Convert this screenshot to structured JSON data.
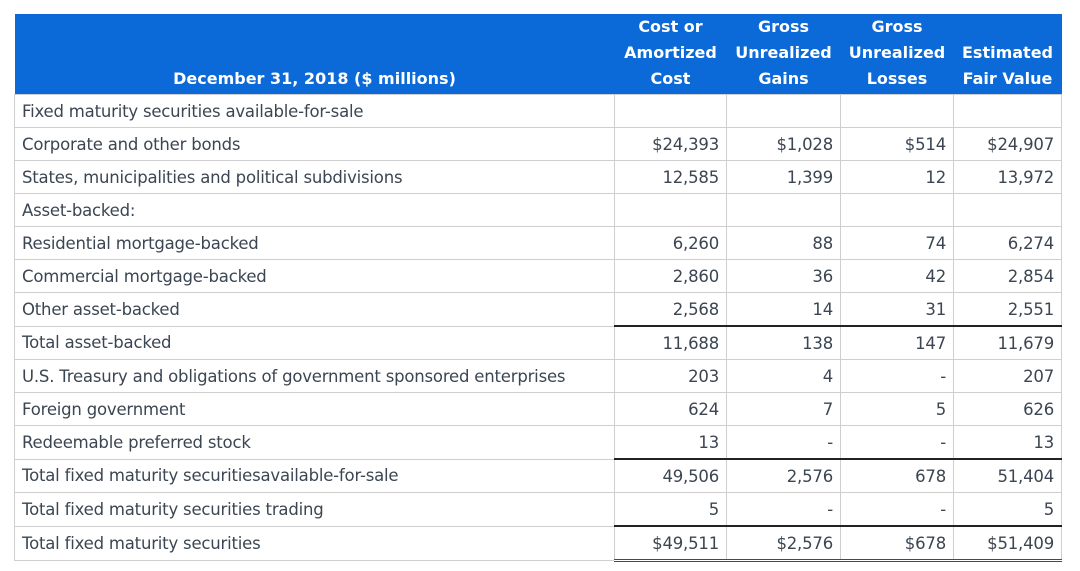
{
  "table": {
    "headers": [
      "December 31, 2018 ($ millions)",
      "Cost or Amortized Cost",
      "Gross Unrealized Gains",
      "Gross Unrealized Losses",
      "Estimated Fair Value"
    ],
    "rows": [
      {
        "label": "Fixed maturity securities available-for-sale",
        "values": [
          "",
          "",
          "",
          ""
        ],
        "type": "section"
      },
      {
        "label": "Corporate and other bonds",
        "values": [
          "$24,393",
          "$1,028",
          "$514",
          "$24,907"
        ]
      },
      {
        "label": "States, municipalities and political subdivisions",
        "values": [
          "12,585",
          "1,399",
          "12",
          "13,972"
        ]
      },
      {
        "label": "Asset-backed:",
        "values": [
          "",
          "",
          "",
          ""
        ],
        "type": "section"
      },
      {
        "label": "Residential mortgage-backed",
        "values": [
          "6,260",
          "88",
          "74",
          "6,274"
        ]
      },
      {
        "label": "Commercial mortgage-backed",
        "values": [
          "2,860",
          "36",
          "42",
          "2,854"
        ]
      },
      {
        "label": "Other asset-backed",
        "values": [
          "2,568",
          "14",
          "31",
          "2,551"
        ]
      },
      {
        "label": "Total asset-backed",
        "values": [
          "11,688",
          "138",
          "147",
          "11,679"
        ],
        "type": "total"
      },
      {
        "label": "U.S. Treasury and obligations of government sponsored enterprises",
        "values": [
          "203",
          "4",
          "-",
          "207"
        ]
      },
      {
        "label": "Foreign government",
        "values": [
          "624",
          "7",
          "5",
          "626"
        ]
      },
      {
        "label": "Redeemable preferred stock",
        "values": [
          "13",
          "-",
          "-",
          "13"
        ]
      },
      {
        "label": "Total fixed maturity securitiesavailable-for-sale",
        "values": [
          "49,506",
          "2,576",
          "678",
          "51,404"
        ],
        "type": "total"
      },
      {
        "label": "Total fixed maturity securities trading",
        "values": [
          "5",
          "-",
          "-",
          "5"
        ]
      },
      {
        "label": "Total fixed maturity securities",
        "values": [
          "$49,511",
          "$2,576",
          "$678",
          "$51,409"
        ],
        "type": "total final"
      }
    ]
  }
}
